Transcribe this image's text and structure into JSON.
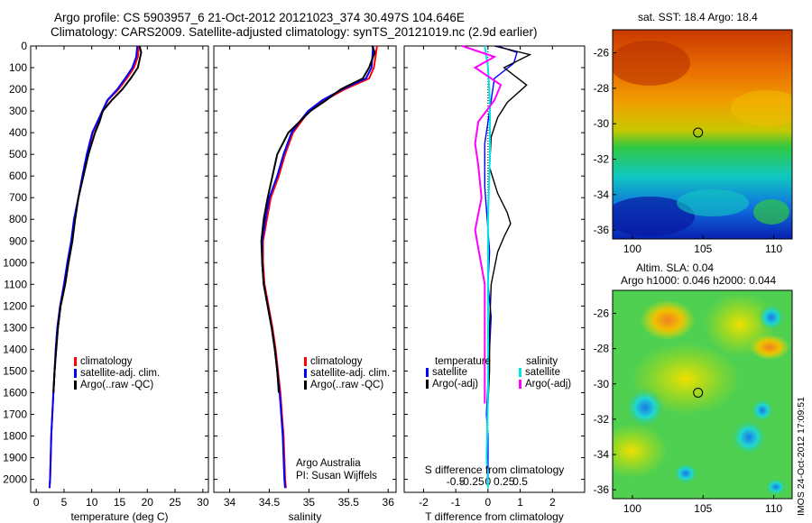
{
  "header": {
    "line1": "Argo profile: CS 5903957_6 21-Oct-2012 20121023_374 30.497S 104.646E",
    "line2": "Climatology: CARS2009. Satellite-adjusted climatology: synTS_20121019.nc (2.9d earlier)"
  },
  "stamp": "IMOS 24-Oct-2012 17:09:51",
  "colors": {
    "climatology": "#ff0000",
    "satellite": "#0000ff",
    "argo": "#000000",
    "sat_salinity": "#00e5e5",
    "argo_salinity": "#ff00ff"
  },
  "chart_data": [
    {
      "type": "line",
      "name": "temperature-profile",
      "xlabel": "temperature (deg C)",
      "ylabel": "",
      "xlim": [
        -1,
        31
      ],
      "ylim": [
        2060,
        0
      ],
      "xticks": [
        0,
        5,
        10,
        15,
        20,
        25,
        30
      ],
      "yticks": [
        0,
        100,
        200,
        300,
        400,
        500,
        600,
        700,
        800,
        900,
        1000,
        1100,
        1200,
        1300,
        1400,
        1500,
        1600,
        1700,
        1800,
        1900,
        2000
      ],
      "legend": [
        "climatology",
        "satellite-adj. clim.",
        "Argo(..raw -QC)"
      ],
      "series": [
        {
          "name": "climatology",
          "color": "#ff0000",
          "x": [
            18.5,
            18.3,
            17.6,
            16.3,
            14.8,
            12.9,
            12.0,
            11.1,
            10.2,
            9.2,
            8.4,
            7.6,
            6.9,
            6.5,
            5.8,
            5.2,
            4.4,
            3.9,
            3.6,
            3.3,
            3.1,
            2.9,
            2.7,
            2.6,
            2.5,
            2.4
          ],
          "y": [
            0,
            50,
            100,
            150,
            200,
            250,
            300,
            350,
            400,
            500,
            600,
            700,
            800,
            900,
            1000,
            1100,
            1200,
            1300,
            1400,
            1500,
            1600,
            1700,
            1800,
            1900,
            2000,
            2040
          ]
        },
        {
          "name": "satellite-adj. clim.",
          "color": "#0000ff",
          "x": [
            18.2,
            18.0,
            17.3,
            16.0,
            14.6,
            12.8,
            11.9,
            11.0,
            10.1,
            9.1,
            8.3,
            7.6,
            6.8,
            6.3,
            5.6,
            5.0,
            4.3,
            3.8,
            3.5,
            3.3,
            3.1,
            2.9,
            2.7,
            2.6,
            2.5,
            2.4
          ],
          "y": [
            0,
            50,
            100,
            150,
            200,
            250,
            300,
            350,
            400,
            500,
            600,
            700,
            800,
            900,
            1000,
            1100,
            1200,
            1300,
            1400,
            1500,
            1600,
            1700,
            1800,
            1900,
            2000,
            2040
          ]
        },
        {
          "name": "Argo(..raw -QC)",
          "color": "#000000",
          "x": [
            18.6,
            18.9,
            18.3,
            17.0,
            15.5,
            13.6,
            12.0,
            11.4,
            10.6,
            9.4,
            8.5,
            7.6,
            7.0,
            6.5,
            5.8,
            5.2,
            4.4,
            3.9,
            3.6,
            3.3,
            3.1
          ],
          "y": [
            0,
            30,
            100,
            150,
            200,
            250,
            300,
            350,
            400,
            500,
            600,
            700,
            800,
            900,
            1000,
            1100,
            1200,
            1300,
            1400,
            1500,
            1600
          ]
        }
      ]
    },
    {
      "type": "line",
      "name": "salinity-profile",
      "xlabel": "salinity",
      "ylabel": "",
      "xlim": [
        33.8,
        36.1
      ],
      "ylim": [
        2060,
        0
      ],
      "xticks": [
        34,
        34.5,
        35,
        35.5,
        36
      ],
      "legend": [
        "climatology",
        "satellite-adj. clim.",
        "Argo(..raw -QC)"
      ],
      "annotations": [
        "Argo Australia",
        "PI: Susan Wijffels"
      ],
      "series": [
        {
          "name": "climatology",
          "color": "#ff0000",
          "x": [
            35.86,
            35.84,
            35.82,
            35.76,
            35.45,
            35.2,
            35.0,
            34.9,
            34.8,
            34.7,
            34.62,
            34.52,
            34.47,
            34.42,
            34.42,
            34.44,
            34.49,
            34.54,
            34.58,
            34.61,
            34.64,
            34.66,
            34.68,
            34.69,
            34.7,
            34.71
          ],
          "y": [
            0,
            50,
            100,
            150,
            200,
            250,
            300,
            350,
            400,
            500,
            600,
            700,
            800,
            900,
            1000,
            1100,
            1200,
            1300,
            1400,
            1500,
            1600,
            1700,
            1800,
            1900,
            2000,
            2040
          ]
        },
        {
          "name": "satellite-adj. clim.",
          "color": "#0000ff",
          "x": [
            35.81,
            35.8,
            35.79,
            35.72,
            35.42,
            35.17,
            34.99,
            34.88,
            34.78,
            34.68,
            34.6,
            34.5,
            34.45,
            34.41,
            34.41,
            34.43,
            34.48,
            34.53,
            34.57,
            34.6,
            34.63,
            34.65,
            34.67,
            34.68,
            34.69,
            34.7
          ],
          "y": [
            0,
            50,
            100,
            150,
            200,
            250,
            300,
            350,
            400,
            500,
            600,
            700,
            800,
            900,
            1000,
            1100,
            1200,
            1300,
            1400,
            1500,
            1600,
            1700,
            1800,
            1900,
            2000,
            2040
          ]
        },
        {
          "name": "Argo(..raw -QC)",
          "color": "#000000",
          "x": [
            35.8,
            35.83,
            35.76,
            35.68,
            35.4,
            35.22,
            35.02,
            34.88,
            34.74,
            34.6,
            34.54,
            34.48,
            34.43,
            34.4,
            34.41,
            34.43,
            34.48,
            34.53,
            34.57,
            34.6,
            34.62
          ],
          "y": [
            0,
            30,
            100,
            150,
            200,
            250,
            300,
            350,
            400,
            500,
            600,
            700,
            800,
            900,
            1000,
            1100,
            1200,
            1300,
            1400,
            1500,
            1600
          ]
        }
      ]
    },
    {
      "type": "line",
      "name": "difference-profile",
      "xlabel": "T difference from climatology",
      "xlabel_top": "S difference from climatology",
      "xlim": [
        -2.6,
        3
      ],
      "ylim": [
        2060,
        0
      ],
      "xticks": [
        -2,
        -1,
        0,
        1,
        2
      ],
      "xticklabels": [
        "-2",
        "-1",
        "0",
        "1",
        "2"
      ],
      "sticks": [
        -0.5,
        -0.25,
        0,
        0.25,
        0.5
      ],
      "sticklabels": [
        "-0.5",
        "-0.25",
        "0",
        "0.25",
        "0.5"
      ],
      "legend_headers": [
        "temperature",
        "salinity"
      ],
      "legend": [
        "satellite",
        "Argo(-adj)",
        "satellite",
        "Argo(-adj)"
      ],
      "series": [
        {
          "name": "temperature satellite",
          "color": "#0000ff",
          "x": [
            0.3,
            0.9,
            0.8,
            0.2,
            0.1,
            0.0,
            -0.1,
            -0.1,
            -0.1,
            -0.05,
            0.0,
            0.05,
            0.0,
            0.1,
            0.05,
            0.0,
            -0.05,
            0.0,
            0.0,
            0.0
          ],
          "y": [
            0,
            30,
            80,
            150,
            250,
            350,
            450,
            550,
            650,
            750,
            850,
            950,
            1100,
            1250,
            1400,
            1550,
            1700,
            1800,
            1900,
            2040
          ]
        },
        {
          "name": "temperature Argo(-adj)",
          "color": "#000000",
          "x": [
            0.2,
            1.3,
            0.5,
            1.2,
            0.6,
            0.3,
            0.1,
            0.05,
            0.3,
            0.6,
            0.7,
            0.5,
            0.3,
            0.1,
            0.05,
            0.05,
            0.0
          ],
          "y": [
            0,
            40,
            100,
            180,
            260,
            330,
            420,
            560,
            680,
            770,
            820,
            880,
            950,
            1100,
            1300,
            1500,
            1650
          ]
        },
        {
          "name": "salinity satellite",
          "color": "#00e5e5",
          "x": [
            -0.05,
            0.0,
            0.02,
            0.03,
            0.03,
            0.0,
            0.0,
            0.0,
            -0.02,
            0.0
          ],
          "y": [
            0,
            100,
            200,
            300,
            500,
            800,
            1200,
            1600,
            1900,
            2040
          ]
        },
        {
          "name": "salinity Argo(-adj)",
          "color": "#ff00ff",
          "x": [
            -0.4,
            0.1,
            -0.2,
            0.2,
            0.1,
            -0.15,
            -0.2,
            -0.15,
            -0.1,
            -0.2,
            -0.05,
            -0.05
          ],
          "y": [
            0,
            50,
            100,
            180,
            250,
            350,
            450,
            550,
            700,
            850,
            1100,
            1650
          ]
        }
      ]
    },
    {
      "type": "heatmap",
      "name": "sst-map",
      "title": "sat. SST: 18.4  Argo: 18.4",
      "xticks": [
        100,
        105,
        110
      ],
      "yticks": [
        -26,
        -28,
        -30,
        -32,
        -34,
        -36
      ],
      "xlim": [
        98.6,
        111.3
      ],
      "ylim": [
        -36.5,
        -24.7
      ],
      "marker": {
        "lon": 104.646,
        "lat": -30.497
      }
    },
    {
      "type": "heatmap",
      "name": "sla-map",
      "title": "Altim. SLA: 0.04",
      "subtitle": "Argo h1000: 0.046  h2000: 0.044",
      "xticks": [
        100,
        105,
        110
      ],
      "yticks": [
        -26,
        -28,
        -30,
        -32,
        -34,
        -36
      ],
      "xlim": [
        98.6,
        111.3
      ],
      "ylim": [
        -36.5,
        -24.7
      ],
      "marker": {
        "lon": 104.646,
        "lat": -30.497
      }
    }
  ]
}
